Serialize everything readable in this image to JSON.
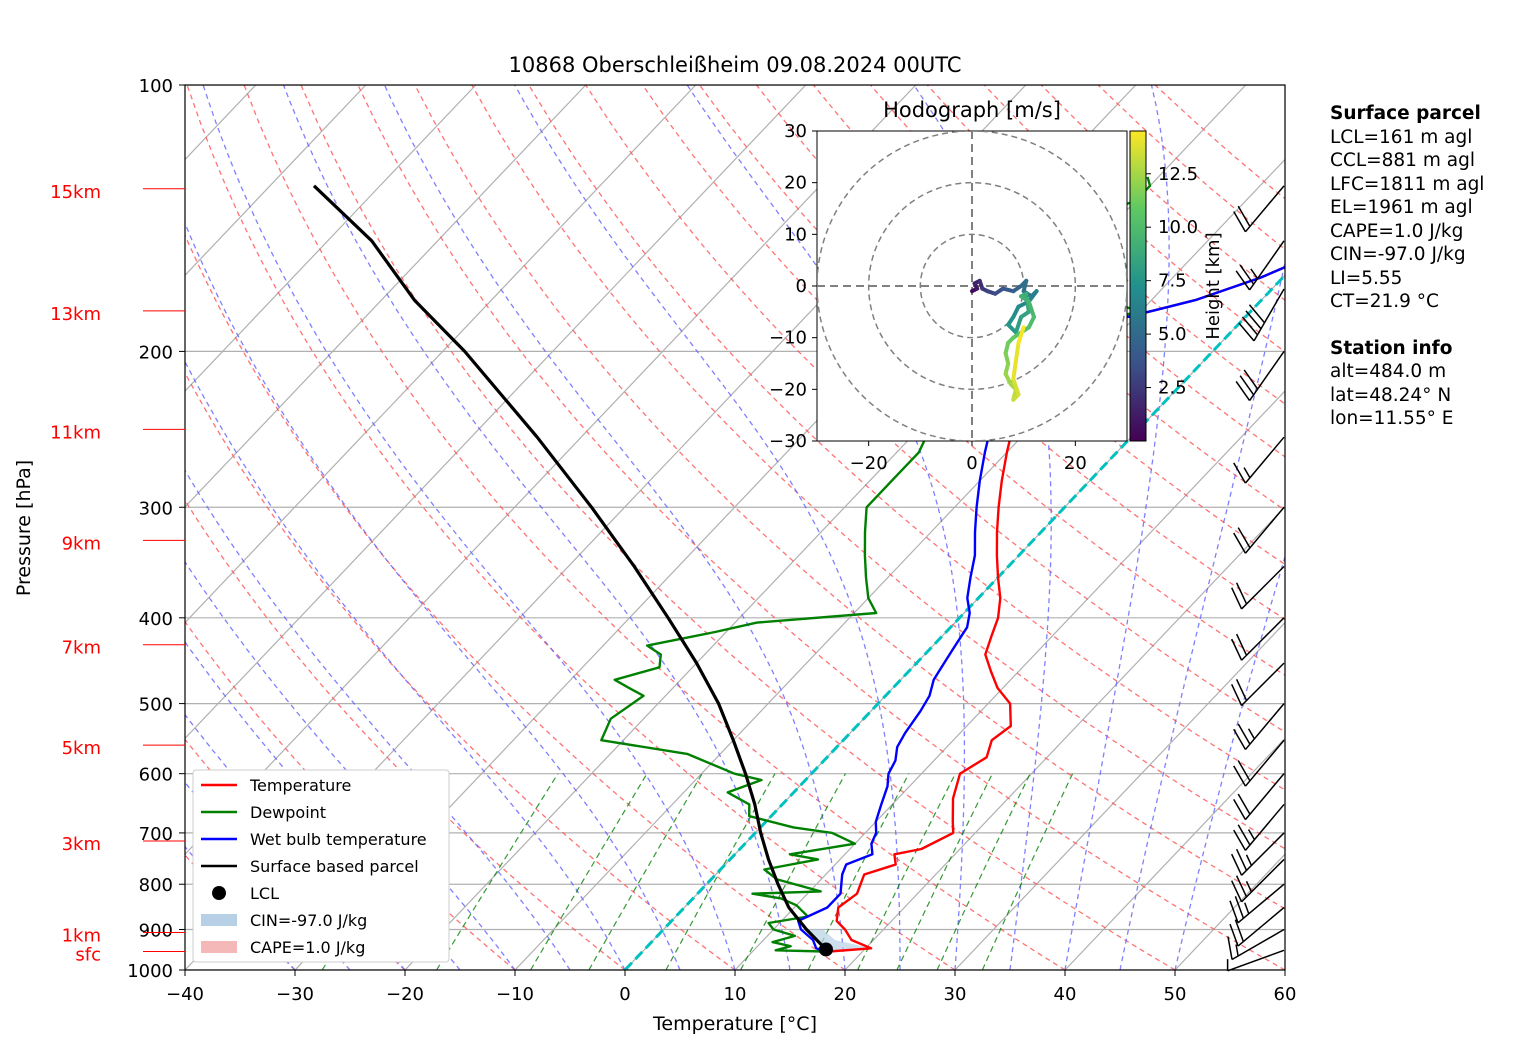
{
  "title": "10868 Oberschleißheim 09.08.2024 00UTC",
  "chart_data": {
    "type": "line",
    "subtype": "skew-T log-p",
    "xlabel": "Temperature [°C]",
    "ylabel": "Pressure [hPa]",
    "xlim": [
      -40,
      60
    ],
    "ylim": [
      1000,
      100
    ],
    "y_scale": "log",
    "grid": true,
    "x_ticks": [
      "−40",
      "−30",
      "−20",
      "−10",
      "0",
      "10",
      "20",
      "30",
      "40",
      "50",
      "60"
    ],
    "y_ticks": [
      {
        "p": 100,
        "label": "100"
      },
      {
        "p": 200,
        "label": "200"
      },
      {
        "p": 300,
        "label": "300"
      },
      {
        "p": 400,
        "label": "400"
      },
      {
        "p": 500,
        "label": "500"
      },
      {
        "p": 600,
        "label": "600"
      },
      {
        "p": 700,
        "label": "700"
      },
      {
        "p": 800,
        "label": "800"
      },
      {
        "p": 900,
        "label": "900"
      },
      {
        "p": 1000,
        "label": "1000"
      }
    ],
    "height_labels": [
      {
        "p": 953,
        "label": "sfc"
      },
      {
        "p": 907,
        "label": "1km"
      },
      {
        "p": 715,
        "label": "3km"
      },
      {
        "p": 557,
        "label": "5km"
      },
      {
        "p": 429,
        "label": "7km"
      },
      {
        "p": 327,
        "label": "9km"
      },
      {
        "p": 245,
        "label": "11km"
      },
      {
        "p": 180,
        "label": "13km"
      },
      {
        "p": 131,
        "label": "15km"
      }
    ],
    "series": [
      {
        "name": "Temperature",
        "color": "#ff0000",
        "points": [
          [
            17,
            953
          ],
          [
            20.5,
            945
          ],
          [
            18,
            925
          ],
          [
            16.5,
            900
          ],
          [
            15,
            880
          ],
          [
            14,
            850
          ],
          [
            14.5,
            820
          ],
          [
            13.5,
            780
          ],
          [
            15.5,
            760
          ],
          [
            14.5,
            740
          ],
          [
            16.5,
            730
          ],
          [
            18,
            700
          ],
          [
            17,
            680
          ],
          [
            15,
            640
          ],
          [
            13.5,
            600
          ],
          [
            14.5,
            575
          ],
          [
            13.5,
            550
          ],
          [
            14,
            530
          ],
          [
            12,
            500
          ],
          [
            9.5,
            480
          ],
          [
            7.5,
            460
          ],
          [
            5.5,
            440
          ],
          [
            4.5,
            420
          ],
          [
            3.5,
            400
          ],
          [
            2,
            380
          ],
          [
            0,
            360
          ],
          [
            -2,
            340
          ],
          [
            -4,
            320
          ],
          [
            -6,
            300
          ],
          [
            -8,
            280
          ],
          [
            -10,
            260
          ],
          [
            -12,
            240
          ],
          [
            -14,
            220
          ],
          [
            -15,
            205
          ],
          [
            -14.5,
            195
          ],
          [
            -12,
            185
          ],
          [
            -9,
            180
          ],
          [
            -6,
            175
          ],
          [
            -4,
            170
          ],
          [
            -2,
            165
          ],
          [
            -0.5,
            160
          ],
          [
            0.5,
            155
          ],
          [
            1,
            150
          ],
          [
            2,
            145
          ],
          [
            3,
            140
          ],
          [
            3.5,
            135
          ],
          [
            4,
            130
          ],
          [
            4.5,
            125
          ],
          [
            5,
            122
          ]
        ]
      },
      {
        "name": "Dewpoint",
        "color": "#008000",
        "points": [
          [
            16.5,
            953
          ],
          [
            12,
            950
          ],
          [
            13,
            940
          ],
          [
            11,
            930
          ],
          [
            12.5,
            915
          ],
          [
            10,
            900
          ],
          [
            9,
            885
          ],
          [
            12,
            870
          ],
          [
            10,
            845
          ],
          [
            8,
            830
          ],
          [
            5,
            820
          ],
          [
            11,
            815
          ],
          [
            6,
            790
          ],
          [
            4,
            770
          ],
          [
            8,
            750
          ],
          [
            5,
            740
          ],
          [
            10,
            720
          ],
          [
            7,
            700
          ],
          [
            3,
            690
          ],
          [
            -2,
            670
          ],
          [
            -3,
            650
          ],
          [
            -6,
            630
          ],
          [
            -4,
            610
          ],
          [
            -7,
            600
          ],
          [
            -13,
            570
          ],
          [
            -22,
            550
          ],
          [
            -23,
            520
          ],
          [
            -22,
            490
          ],
          [
            -24,
            480
          ],
          [
            -26,
            470
          ],
          [
            -23,
            455
          ],
          [
            -24,
            440
          ],
          [
            -26,
            430
          ],
          [
            -21,
            415
          ],
          [
            -18,
            405
          ],
          [
            -8,
            395
          ],
          [
            -10,
            380
          ],
          [
            -12,
            360
          ],
          [
            -14,
            340
          ],
          [
            -16,
            320
          ],
          [
            -18,
            300
          ],
          [
            -18,
            280
          ],
          [
            -18,
            260
          ],
          [
            -19,
            245
          ],
          [
            -20,
            230
          ],
          [
            -20,
            215
          ],
          [
            -18,
            200
          ],
          [
            -14,
            190
          ],
          [
            -13,
            185
          ],
          [
            -10,
            180
          ],
          [
            -12,
            178
          ],
          [
            -14,
            176
          ],
          [
            -17,
            175
          ],
          [
            -22,
            174
          ],
          [
            -28,
            172
          ],
          [
            -34,
            170
          ],
          [
            -38,
            168
          ],
          [
            -36,
            166
          ],
          [
            -33,
            165
          ],
          [
            -30,
            160
          ],
          [
            -28,
            150
          ],
          [
            -25,
            148
          ],
          [
            -23,
            145
          ],
          [
            -22,
            140
          ],
          [
            -20,
            135
          ],
          [
            -20,
            130
          ],
          [
            -21,
            127
          ]
        ]
      },
      {
        "name": "Wet bulb temperature",
        "color": "#0000ff",
        "points": [
          [
            16.5,
            953
          ],
          [
            15.5,
            945
          ],
          [
            14.5,
            925
          ],
          [
            12.5,
            900
          ],
          [
            11.5,
            880
          ],
          [
            13,
            850
          ],
          [
            13,
            820
          ],
          [
            11.5,
            780
          ],
          [
            11,
            760
          ],
          [
            12.5,
            740
          ],
          [
            11.5,
            720
          ],
          [
            11,
            700
          ],
          [
            10,
            680
          ],
          [
            9,
            650
          ],
          [
            8,
            620
          ],
          [
            7,
            600
          ],
          [
            6.5,
            580
          ],
          [
            5.5,
            560
          ],
          [
            5,
            540
          ],
          [
            4.5,
            510
          ],
          [
            4,
            490
          ],
          [
            3,
            470
          ],
          [
            2.5,
            450
          ],
          [
            2,
            430
          ],
          [
            1.5,
            410
          ],
          [
            0.5,
            395
          ],
          [
            -1,
            380
          ],
          [
            -2.5,
            360
          ],
          [
            -4,
            340
          ],
          [
            -6,
            320
          ],
          [
            -8,
            300
          ],
          [
            -10,
            280
          ],
          [
            -12,
            260
          ],
          [
            -14,
            240
          ],
          [
            -15.5,
            220
          ],
          [
            -16,
            205
          ],
          [
            -15,
            195
          ],
          [
            -12,
            185
          ],
          [
            -9,
            180
          ],
          [
            -6,
            175
          ],
          [
            -4,
            170
          ],
          [
            -2,
            165
          ],
          [
            -0.5,
            160
          ],
          [
            0.5,
            155
          ],
          [
            1.5,
            150
          ],
          [
            2.5,
            145
          ],
          [
            3,
            140
          ],
          [
            3.5,
            135
          ],
          [
            4,
            130
          ],
          [
            4.5,
            125
          ],
          [
            5,
            122
          ]
        ]
      },
      {
        "name": "Surface based parcel",
        "color": "#000000",
        "points": [
          [
            17,
            953
          ],
          [
            16.5,
            948
          ],
          [
            13,
            900
          ],
          [
            9.5,
            850
          ],
          [
            6.5,
            800
          ],
          [
            3.5,
            750
          ],
          [
            0.5,
            700
          ],
          [
            -2.5,
            650
          ],
          [
            -6,
            600
          ],
          [
            -10,
            550
          ],
          [
            -14.5,
            500
          ],
          [
            -20,
            450
          ],
          [
            -26.5,
            400
          ],
          [
            -34,
            350
          ],
          [
            -43,
            300
          ],
          [
            -54,
            250
          ],
          [
            -68,
            200
          ],
          [
            -77,
            175
          ],
          [
            -86,
            150
          ],
          [
            -96,
            130
          ]
        ]
      }
    ],
    "lcl": {
      "label": "LCL",
      "t": 16.5,
      "p": 948
    },
    "legend": {
      "placement": "lower-left",
      "entries": [
        {
          "label": "Temperature",
          "color": "#ff0000",
          "kind": "line"
        },
        {
          "label": "Dewpoint",
          "color": "#008000",
          "kind": "line"
        },
        {
          "label": "Wet bulb temperature",
          "color": "#0000ff",
          "kind": "line"
        },
        {
          "label": "Surface based parcel",
          "color": "#000000",
          "kind": "line"
        },
        {
          "label": "LCL",
          "color": "#000000",
          "kind": "marker"
        },
        {
          "label": "CIN=-97.0 J/kg",
          "color": "#b8d0e6",
          "kind": "patch"
        },
        {
          "label": "CAPE=1.0 J/kg",
          "color": "#f4b8b8",
          "kind": "patch"
        }
      ]
    },
    "hodograph": {
      "title": "Hodograph [m/s]",
      "xlim": [
        -30,
        30
      ],
      "ylim": [
        -30,
        30
      ],
      "ticks": [
        "−20",
        "0",
        "20"
      ],
      "y_ticks": [
        {
          "v": 30,
          "label": "30"
        },
        {
          "v": 20,
          "label": "20"
        },
        {
          "v": 10,
          "label": "10"
        },
        {
          "v": 0,
          "label": "0"
        },
        {
          "v": -10,
          "label": "−10"
        },
        {
          "v": -20,
          "label": "−20"
        },
        {
          "v": -30,
          "label": "−30"
        }
      ],
      "rings": [
        10,
        20,
        30
      ],
      "colorbar": {
        "label": "Height [km]",
        "ticks": [
          "2.5",
          "5.0",
          "7.5",
          "10.0",
          "12.5"
        ],
        "max": 14.5
      },
      "uv": [
        [
          0,
          -1,
          0
        ],
        [
          1,
          -0.5,
          0.5
        ],
        [
          0.5,
          0.5,
          1
        ],
        [
          1.5,
          1,
          1.5
        ],
        [
          2,
          -0.5,
          2
        ],
        [
          3,
          -1,
          2.5
        ],
        [
          4.5,
          -1.5,
          3
        ],
        [
          6,
          -0.5,
          3.5
        ],
        [
          8,
          -1,
          4
        ],
        [
          9.5,
          0,
          4.5
        ],
        [
          10.5,
          1,
          5
        ],
        [
          10,
          -1,
          5.3
        ],
        [
          11.5,
          -2,
          5.6
        ],
        [
          12.5,
          -1,
          6
        ],
        [
          11,
          -3,
          6.3
        ],
        [
          9,
          -4,
          6.6
        ],
        [
          8,
          -6,
          7
        ],
        [
          7,
          -7.5,
          7.3
        ],
        [
          8.5,
          -9,
          7.6
        ],
        [
          9.5,
          -6,
          8
        ],
        [
          11,
          -5,
          8.3
        ],
        [
          10.5,
          -1.5,
          8.6
        ],
        [
          9.5,
          -2,
          9
        ],
        [
          11,
          -3,
          9.3
        ],
        [
          12,
          -6,
          9.6
        ],
        [
          11,
          -8,
          10
        ],
        [
          9.5,
          -9,
          10.3
        ],
        [
          8,
          -10,
          10.6
        ],
        [
          7,
          -11,
          11
        ],
        [
          6.5,
          -13,
          11.3
        ],
        [
          7,
          -15,
          11.6
        ],
        [
          6.5,
          -17,
          12
        ],
        [
          7.5,
          -19,
          12.3
        ],
        [
          8.5,
          -20,
          12.6
        ],
        [
          8,
          -22,
          13
        ],
        [
          9,
          -21,
          13.3
        ],
        [
          8,
          -18,
          13.6
        ],
        [
          9,
          -11,
          14
        ],
        [
          10,
          -8,
          14.3
        ]
      ]
    },
    "wind_barbs": [
      {
        "p": 950,
        "speed_kt": 5,
        "dir": 250
      },
      {
        "p": 900,
        "speed_kt": 15,
        "dir": 240
      },
      {
        "p": 850,
        "speed_kt": 20,
        "dir": 230
      },
      {
        "p": 800,
        "speed_kt": 25,
        "dir": 230
      },
      {
        "p": 750,
        "speed_kt": 25,
        "dir": 225
      },
      {
        "p": 700,
        "speed_kt": 25,
        "dir": 225
      },
      {
        "p": 650,
        "speed_kt": 25,
        "dir": 220
      },
      {
        "p": 600,
        "speed_kt": 20,
        "dir": 220
      },
      {
        "p": 550,
        "speed_kt": 20,
        "dir": 220
      },
      {
        "p": 500,
        "speed_kt": 25,
        "dir": 220
      },
      {
        "p": 450,
        "speed_kt": 20,
        "dir": 225
      },
      {
        "p": 400,
        "speed_kt": 20,
        "dir": 225
      },
      {
        "p": 350,
        "speed_kt": 20,
        "dir": 225
      },
      {
        "p": 300,
        "speed_kt": 20,
        "dir": 220
      },
      {
        "p": 250,
        "speed_kt": 15,
        "dir": 220
      },
      {
        "p": 200,
        "speed_kt": 30,
        "dir": 215
      },
      {
        "p": 170,
        "speed_kt": 40,
        "dir": 210
      },
      {
        "p": 150,
        "speed_kt": 25,
        "dir": 215
      },
      {
        "p": 130,
        "speed_kt": 20,
        "dir": 220
      }
    ]
  },
  "surface_parcel": {
    "heading": "Surface parcel",
    "lines": [
      "LCL=161 m agl",
      "CCL=881 m agl",
      "LFC=1811 m agl",
      "EL=1961 m agl",
      "CAPE=1.0 J/kg",
      "CIN=-97.0 J/kg",
      "LI=5.55",
      "CT=21.9 °C"
    ]
  },
  "station_info": {
    "heading": "Station info",
    "lines": [
      "alt=484.0 m",
      "lat=48.24° N",
      "lon=11.55° E"
    ]
  }
}
